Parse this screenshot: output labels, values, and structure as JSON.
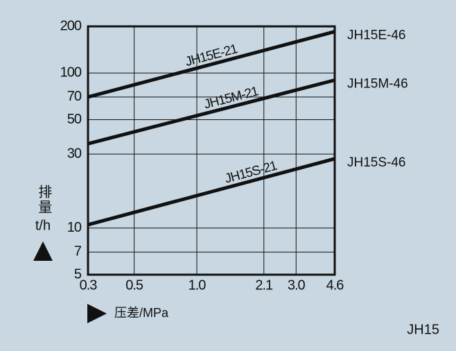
{
  "chart_data": {
    "type": "line",
    "x_label": "压差/MPa",
    "y_label": "排量",
    "y_unit": "t/h",
    "corner_label": "JH15",
    "x": [
      0.3,
      4.6
    ],
    "series": [
      {
        "name": "JH15E-46",
        "inline_label": "JH15E-21",
        "color": "#111111",
        "values": [
          70,
          185
        ]
      },
      {
        "name": "JH15M-46",
        "inline_label": "JH15M-21",
        "color": "#111111",
        "values": [
          35,
          90
        ]
      },
      {
        "name": "JH15S-46",
        "inline_label": "JH15S-21",
        "color": "#111111",
        "values": [
          10.5,
          28
        ]
      }
    ],
    "xlim": [
      0.3,
      4.6
    ],
    "xticks": [
      0.3,
      0.5,
      {
        "value": 1,
        "label": "1.0"
      },
      2.1,
      {
        "value": 3,
        "label": "3.0"
      },
      4.6
    ],
    "ylim": [
      5,
      200
    ],
    "yticks": [
      5,
      7,
      10,
      30,
      50,
      70,
      100,
      200
    ],
    "log_x": true,
    "log_y": true,
    "grid": true
  }
}
